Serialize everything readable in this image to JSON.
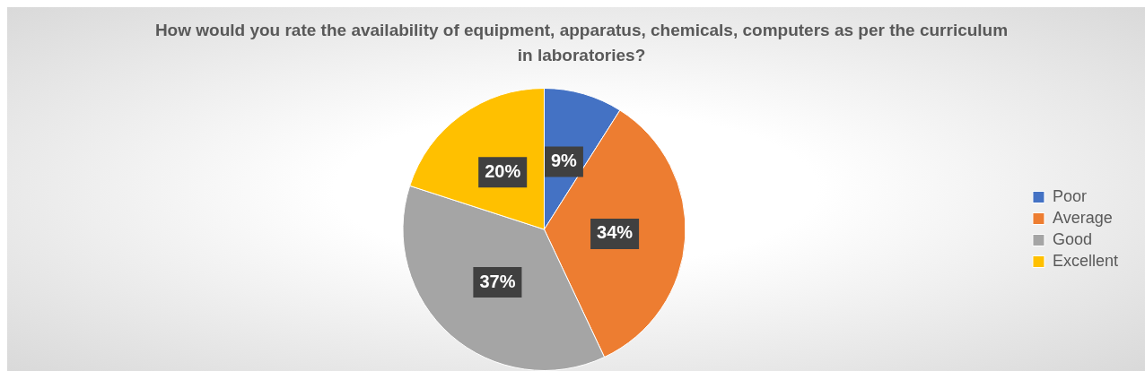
{
  "chart_data": {
    "type": "pie",
    "title": "How would you rate the availability of equipment, apparatus, chemicals, computers as per the curriculum in laboratories?",
    "categories": [
      "Poor",
      "Average",
      "Good",
      "Excellent"
    ],
    "values": [
      9,
      34,
      37,
      20
    ],
    "colors": [
      "#4472c4",
      "#ed7d31",
      "#a5a5a5",
      "#ffc000"
    ],
    "value_labels": [
      "9%",
      "34%",
      "37%",
      "20%"
    ],
    "legend": "right"
  }
}
